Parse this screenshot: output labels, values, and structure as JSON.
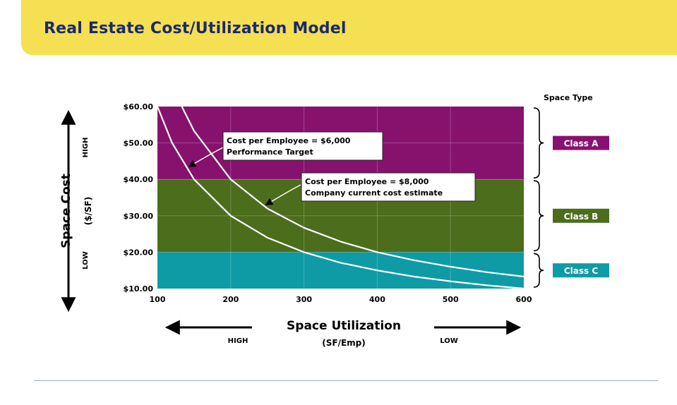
{
  "slide": {
    "title": "Real Estate Cost/Utilization Model"
  },
  "colors": {
    "header_band": "#f5df52",
    "title": "#1a2a6c",
    "class_a": "#87126e",
    "class_b": "#4c6d1c",
    "class_c": "#0e9ba6",
    "curve": "#ffffff"
  },
  "chart_data": {
    "type": "line",
    "xlabel": "Space Utilization",
    "xlabel_unit": "(SF/Emp)",
    "ylabel": "Space Cost",
    "ylabel_unit": "($/SF)",
    "xlim": [
      100,
      600
    ],
    "ylim": [
      10,
      60
    ],
    "x_ticks": [
      "100",
      "200",
      "300",
      "400",
      "500",
      "600"
    ],
    "y_ticks": [
      "$10.00",
      "$20.00",
      "$30.00",
      "$40.00",
      "$50.00",
      "$60.00"
    ],
    "x_axis_direction": {
      "left": "HIGH",
      "right": "LOW"
    },
    "y_axis_direction": {
      "top": "HIGH",
      "bottom": "LOW"
    },
    "bands": [
      {
        "name": "Class A",
        "from": 40,
        "to": 60,
        "color": "#87126e"
      },
      {
        "name": "Class B",
        "from": 20,
        "to": 40,
        "color": "#4c6d1c"
      },
      {
        "name": "Class C",
        "from": 10,
        "to": 20,
        "color": "#0e9ba6"
      }
    ],
    "band_legend_title": "Space Type",
    "series": [
      {
        "x": [
          100,
          120,
          150,
          200,
          250,
          300,
          350,
          400,
          450,
          500,
          550,
          600
        ],
        "y": [
          60,
          50,
          40,
          30,
          24,
          20,
          17.1,
          15,
          13.3,
          12,
          10.9,
          10
        ]
      },
      {
        "x": [
          133.3,
          150,
          200,
          250,
          300,
          350,
          400,
          450,
          500,
          550,
          600
        ],
        "y": [
          60,
          53.3,
          40,
          32,
          26.7,
          22.9,
          20,
          17.8,
          16,
          14.5,
          13.3
        ]
      }
    ],
    "annotations": [
      {
        "line1": "Cost per Employee = $6,000",
        "line2": "Performance Target",
        "x": 140,
        "y": 43
      },
      {
        "line1": "Cost per Employee = $8,000",
        "line2": "Company current cost estimate",
        "x": 245,
        "y": 32.5
      }
    ]
  }
}
